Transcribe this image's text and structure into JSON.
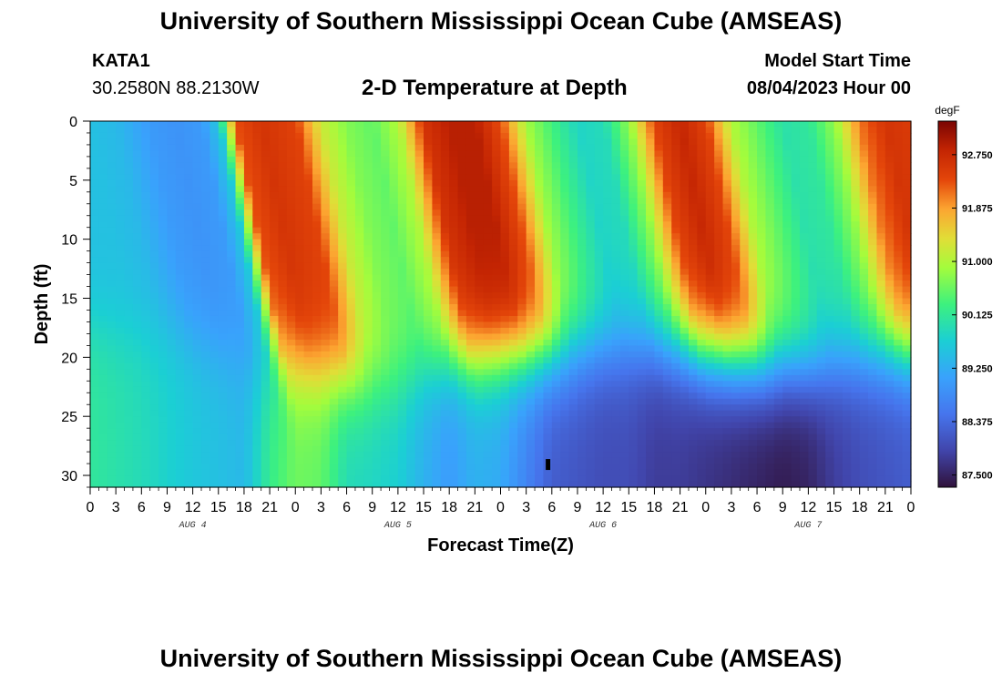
{
  "header": {
    "title": "University of Southern Mississippi Ocean Cube (AMSEAS)",
    "station_id": "KATA1",
    "station_coords": "30.2580N  88.2130W",
    "plot_title": "2-D Temperature at Depth",
    "model_label": "Model Start Time",
    "model_time": "08/04/2023 Hour 00"
  },
  "footer": {
    "title": "University of Southern Mississippi Ocean Cube (AMSEAS)"
  },
  "chart_data": {
    "type": "heatmap",
    "title": "2-D Temperature at Depth",
    "xlabel": "Forecast Time(Z)",
    "ylabel": "Depth (ft)",
    "x_range_hours": [
      0,
      96
    ],
    "y_range_ft": [
      0,
      31
    ],
    "x_tick_labels": [
      "0",
      "3",
      "6",
      "9",
      "12",
      "15",
      "18",
      "21",
      "0",
      "3",
      "6",
      "9",
      "12",
      "15",
      "18",
      "21",
      "0",
      "3",
      "6",
      "9",
      "12",
      "15",
      "18",
      "21",
      "0",
      "3",
      "6",
      "9",
      "12",
      "15",
      "18",
      "21",
      "0"
    ],
    "day_labels": [
      "AUG 4",
      "AUG 5",
      "AUG 6",
      "AUG 7"
    ],
    "y_ticks": [
      0,
      5,
      10,
      15,
      20,
      25,
      30
    ],
    "colorbar": {
      "unit": "degF",
      "range": [
        87.3,
        93.3
      ],
      "tick_values": [
        92.75,
        91.875,
        91.0,
        90.125,
        89.25,
        88.375,
        87.5
      ],
      "tick_labels": [
        "92.750",
        "91.875",
        "91.000",
        "90.125",
        "89.250",
        "88.375",
        "87.500"
      ]
    },
    "surface_profile_degF": {
      "hours": [
        0,
        3,
        7,
        10,
        13,
        15,
        17,
        20,
        24,
        27,
        30,
        33,
        36,
        39,
        42,
        45,
        48,
        51,
        54,
        57,
        60,
        63,
        66,
        69,
        72,
        75,
        78,
        81,
        84,
        87,
        90,
        93,
        96
      ],
      "values": [
        89.5,
        89.4,
        89.0,
        88.9,
        89.0,
        89.6,
        92.3,
        92.6,
        92.4,
        91.2,
        90.7,
        90.5,
        91.0,
        92.6,
        92.9,
        92.9,
        92.3,
        90.9,
        90.3,
        89.8,
        89.9,
        90.8,
        92.4,
        92.8,
        92.4,
        91.0,
        90.5,
        90.0,
        90.1,
        90.8,
        92.1,
        92.6,
        92.5
      ]
    },
    "bottom_profile_degF": {
      "hours": [
        0,
        6,
        12,
        15,
        18,
        21,
        24,
        27,
        30,
        33,
        36,
        39,
        42,
        45,
        48,
        51,
        54,
        57,
        60,
        63,
        66,
        69,
        72,
        75,
        78,
        81,
        84,
        87,
        90,
        93,
        96
      ],
      "values": [
        90.1,
        89.9,
        89.6,
        89.5,
        89.4,
        90.2,
        90.6,
        90.5,
        89.9,
        89.8,
        89.7,
        89.3,
        89.0,
        89.3,
        89.2,
        88.7,
        88.2,
        88.1,
        88.0,
        88.0,
        87.8,
        87.8,
        87.7,
        87.6,
        87.5,
        87.4,
        87.5,
        87.8,
        88.0,
        88.1,
        88.2
      ]
    },
    "marker": {
      "hour": 53.5,
      "depth_ft": 29
    }
  }
}
